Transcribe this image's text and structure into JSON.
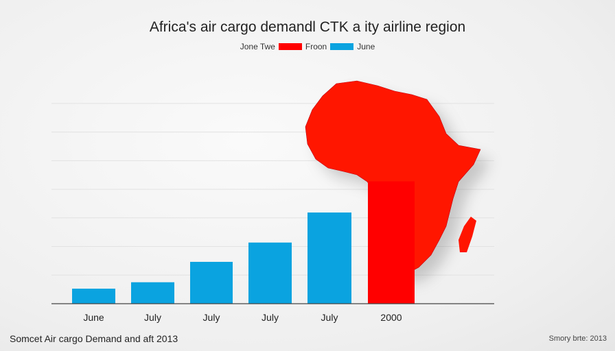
{
  "chart_data": {
    "type": "bar",
    "title": "Africa's air cargo demandl CTK a ity airline region",
    "legend": [
      {
        "label": "Jone Twe",
        "color": null
      },
      {
        "label": "Froon",
        "color": "#ff0000"
      },
      {
        "label": "June",
        "color": "#0aa3e0"
      }
    ],
    "legend_placement": "top-center",
    "categories": [
      "June",
      "July",
      "July",
      "July",
      "July",
      "2000"
    ],
    "values": [
      7,
      10,
      19.5,
      28.5,
      42.5,
      57
    ],
    "bar_colors": [
      "#0aa3e0",
      "#0aa3e0",
      "#0aa3e0",
      "#0aa3e0",
      "#0aa3e0",
      "#ff0000"
    ],
    "ylim": [
      0,
      100
    ],
    "grid": true,
    "xlabel": "",
    "ylabel": "",
    "decoration": "red-africa-map"
  },
  "footer": {
    "source": "Somcet Air cargo Demand and aft 2013",
    "note": "Smory brte: 2013"
  }
}
